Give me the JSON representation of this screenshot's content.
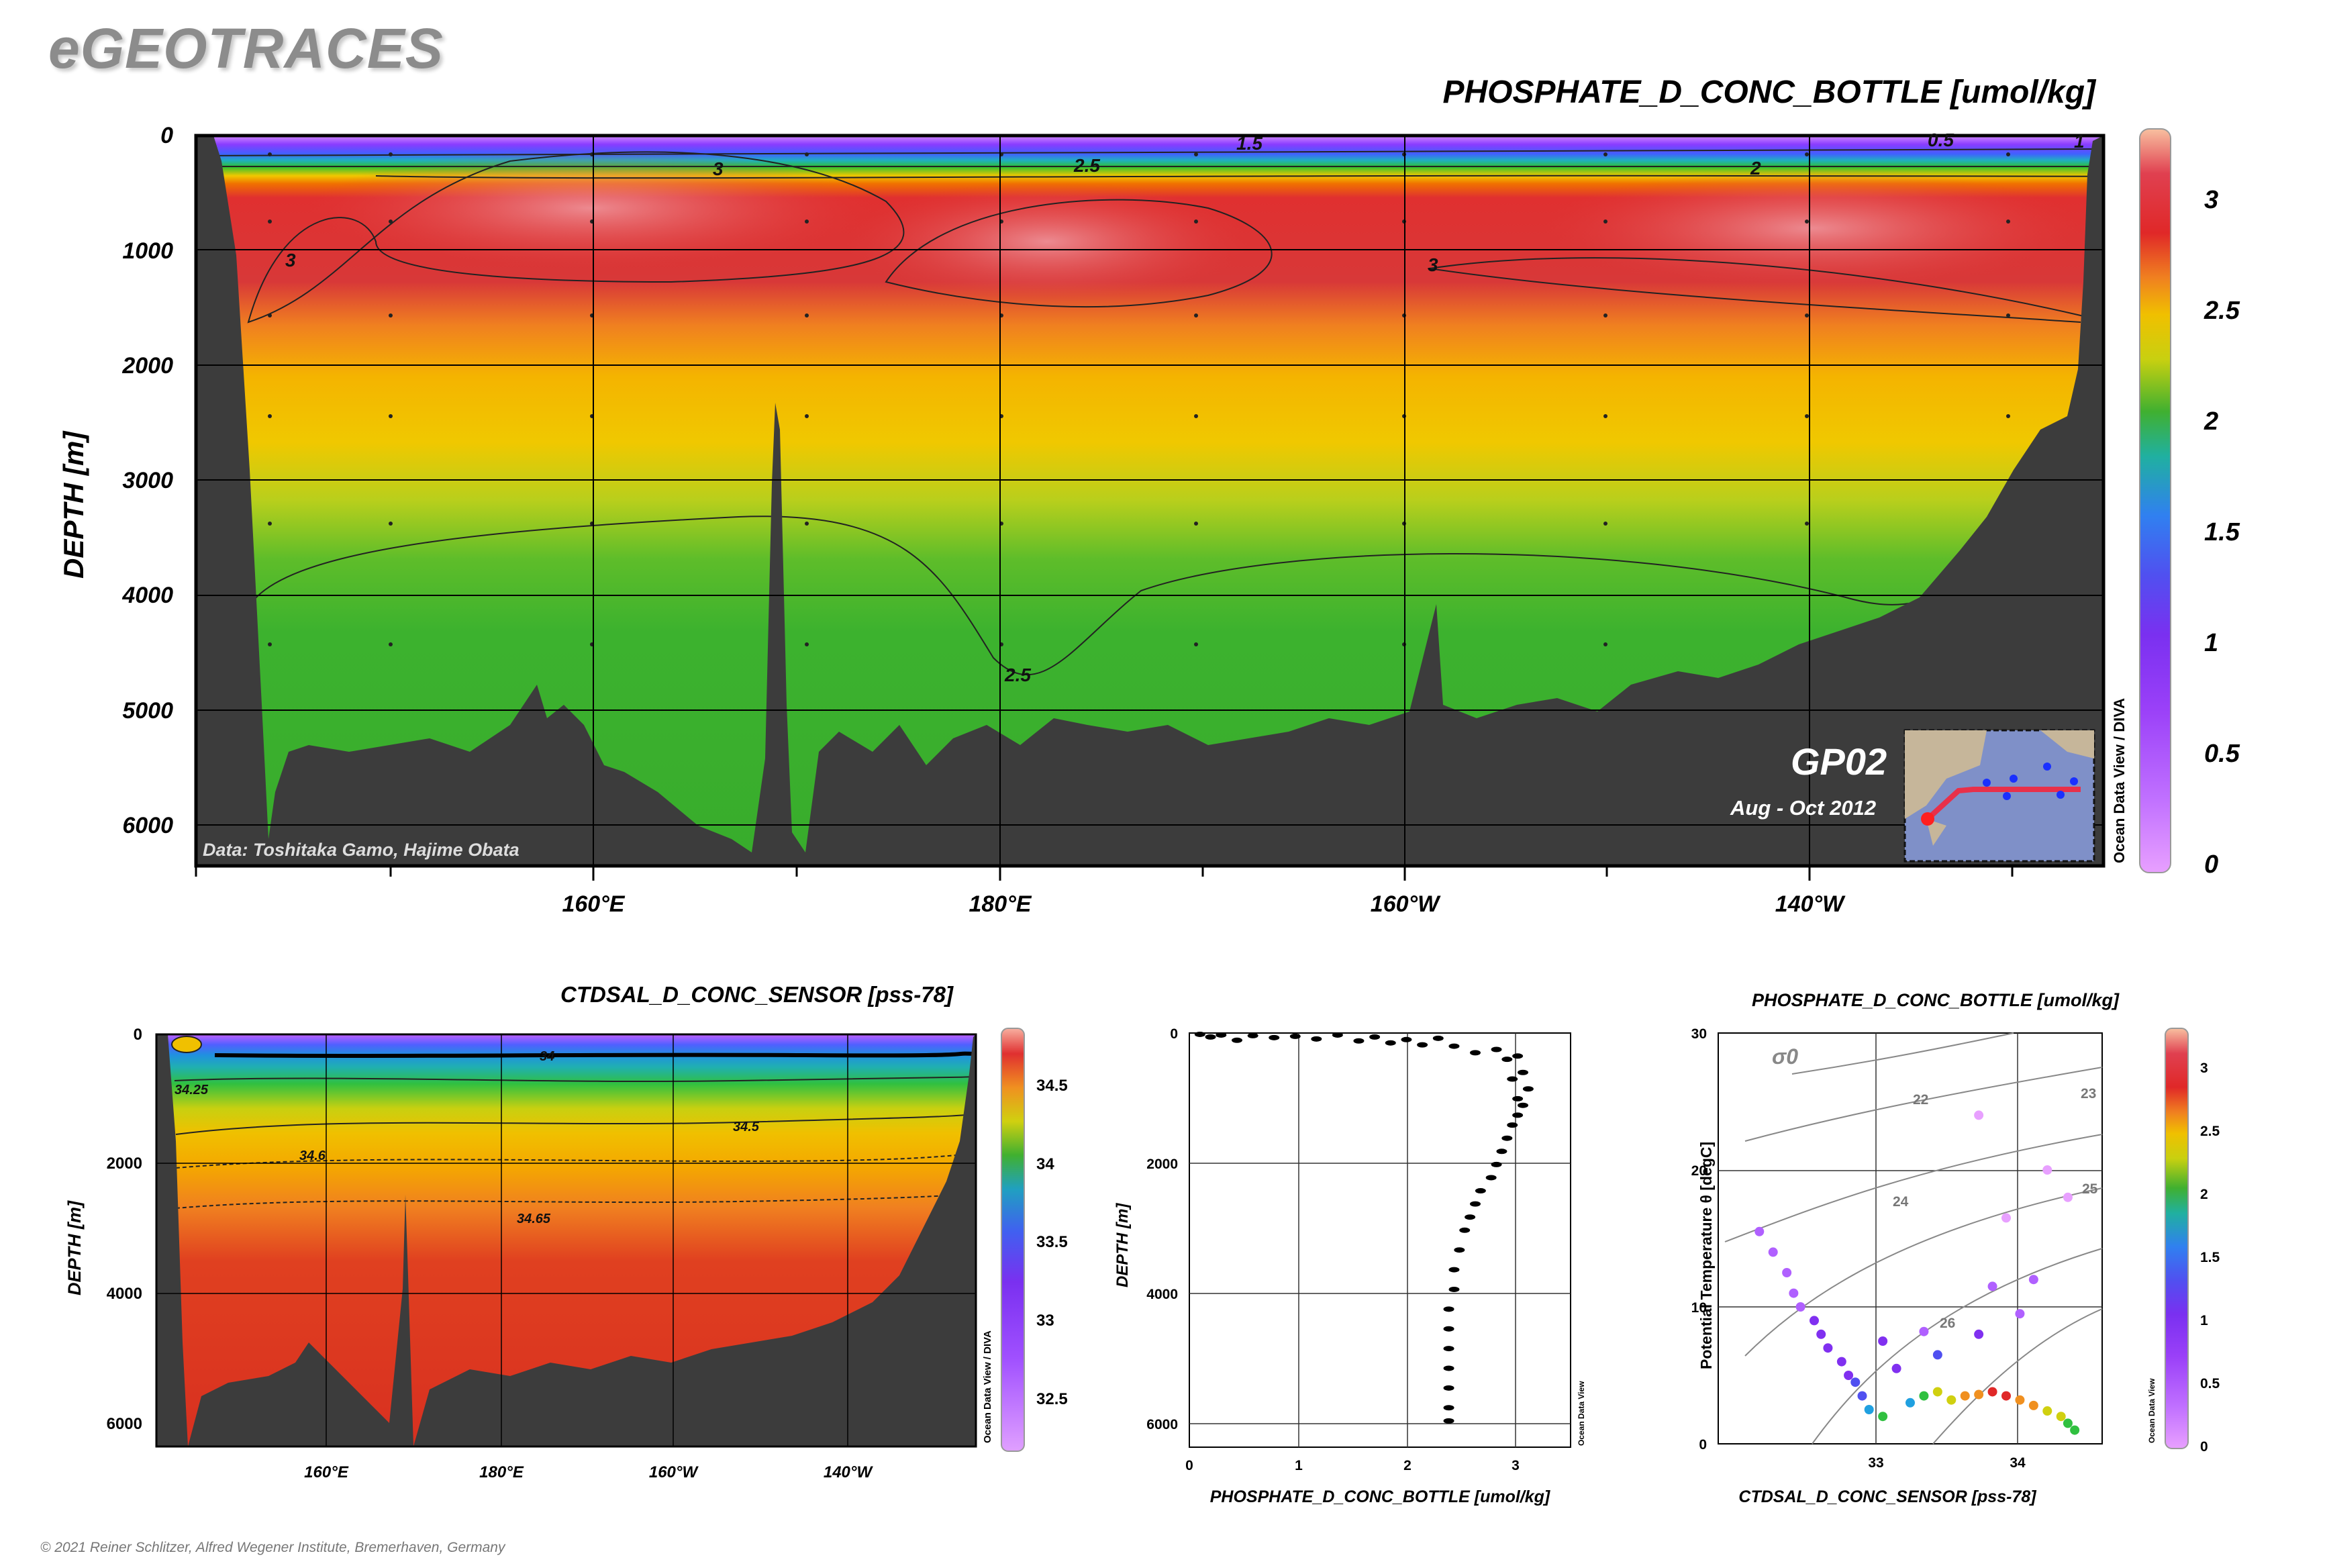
{
  "header": {
    "brand": "eGEOTRACES",
    "copyright": "© 2021 Reiner Schlitzer, Alfred Wegener Institute, Bremerhaven, Germany"
  },
  "colors": {
    "land": "#3c3c3c",
    "grid": "#000000",
    "accent_track": "#e8304a"
  },
  "inset": {
    "cruise": "GP02",
    "dates": "Aug - Oct 2012",
    "data_credit": "Data: Toshitaka Gamo, Hajime Obata"
  },
  "watermarks": {
    "odv_diva": "Ocean Data View / DIVA",
    "odv": "Ocean Data View"
  },
  "chart_data": [
    {
      "id": "main_section",
      "type": "heatmap",
      "title": "PHOSPHATE_D_CONC_BOTTLE [umol/kg]",
      "xlabel": "",
      "ylabel": "DEPTH [m]",
      "x_ticks": [
        "160°E",
        "180°E",
        "160°W",
        "140°W"
      ],
      "y_ticks": [
        "0",
        "1000",
        "2000",
        "3000",
        "4000",
        "5000",
        "6000"
      ],
      "ylim": [
        0,
        6400
      ],
      "contour_labels": [
        "3",
        "2.5",
        "1.5",
        "1",
        "0.5",
        "2",
        "3",
        "3",
        "2.5"
      ],
      "colorbar": {
        "ticks": [
          "3",
          "2.5",
          "2",
          "1.5",
          "1",
          "0.5",
          "0"
        ],
        "range": [
          0,
          3.3
        ]
      },
      "depth_layers_m": [
        0,
        100,
        250,
        500,
        800,
        1200,
        1600,
        2200,
        2700,
        3300,
        4000,
        5000,
        6400
      ],
      "phosphate_profile_umol_kg": [
        0.4,
        1.3,
        2.4,
        3.15,
        3.2,
        3.1,
        2.95,
        2.8,
        2.65,
        2.55,
        2.5,
        2.45,
        2.45
      ]
    },
    {
      "id": "salinity_section",
      "type": "heatmap",
      "title": "CTDSAL_D_CONC_SENSOR [pss-78]",
      "xlabel": "",
      "ylabel": "DEPTH [m]",
      "x_ticks": [
        "160°E",
        "180°E",
        "160°W",
        "140°W"
      ],
      "y_ticks": [
        "0",
        "2000",
        "4000",
        "6000"
      ],
      "ylim": [
        0,
        6400
      ],
      "contour_labels": [
        "34",
        "34.25",
        "34.5",
        "34.6",
        "34.65"
      ],
      "colorbar": {
        "ticks": [
          "34.5",
          "34",
          "33.5",
          "33",
          "32.5"
        ],
        "range": [
          32.2,
          34.8
        ]
      },
      "depth_layers_m": [
        0,
        200,
        500,
        1000,
        1800,
        2600,
        3500,
        6400
      ],
      "salinity_profile_pss78": [
        33.0,
        33.9,
        34.2,
        34.4,
        34.55,
        34.65,
        34.68,
        34.69
      ]
    },
    {
      "id": "phosphate_profile",
      "type": "scatter",
      "title": "",
      "xlabel": "PHOSPHATE_D_CONC_BOTTLE [umol/kg]",
      "ylabel": "DEPTH [m]",
      "x_ticks": [
        "0",
        "1",
        "2",
        "3"
      ],
      "y_ticks": [
        "0",
        "2000",
        "4000",
        "6000"
      ],
      "xlim": [
        0,
        3.6
      ],
      "ylim": [
        0,
        6300
      ],
      "points": [
        [
          0.1,
          20
        ],
        [
          0.2,
          60
        ],
        [
          0.3,
          30
        ],
        [
          0.45,
          110
        ],
        [
          0.6,
          40
        ],
        [
          0.8,
          70
        ],
        [
          1.0,
          50
        ],
        [
          1.2,
          90
        ],
        [
          1.4,
          30
        ],
        [
          1.6,
          120
        ],
        [
          1.75,
          60
        ],
        [
          1.9,
          150
        ],
        [
          2.05,
          100
        ],
        [
          2.2,
          180
        ],
        [
          2.35,
          80
        ],
        [
          2.5,
          200
        ],
        [
          2.7,
          300
        ],
        [
          2.9,
          250
        ],
        [
          3.0,
          400
        ],
        [
          3.1,
          350
        ],
        [
          3.15,
          600
        ],
        [
          3.05,
          700
        ],
        [
          3.2,
          850
        ],
        [
          3.1,
          1000
        ],
        [
          3.15,
          1100
        ],
        [
          3.1,
          1250
        ],
        [
          3.05,
          1400
        ],
        [
          3.0,
          1600
        ],
        [
          2.95,
          1800
        ],
        [
          2.9,
          2000
        ],
        [
          2.85,
          2200
        ],
        [
          2.75,
          2400
        ],
        [
          2.7,
          2600
        ],
        [
          2.65,
          2800
        ],
        [
          2.6,
          3000
        ],
        [
          2.55,
          3300
        ],
        [
          2.5,
          3600
        ],
        [
          2.5,
          3900
        ],
        [
          2.45,
          4200
        ],
        [
          2.45,
          4500
        ],
        [
          2.45,
          4800
        ],
        [
          2.45,
          5100
        ],
        [
          2.45,
          5400
        ],
        [
          2.45,
          5700
        ],
        [
          2.45,
          5900
        ]
      ]
    },
    {
      "id": "ts_diagram",
      "type": "scatter",
      "title": "PHOSPHATE_D_CONC_BOTTLE [umol/kg]",
      "xlabel": "CTDSAL_D_CONC_SENSOR [pss-78]",
      "ylabel": "Potential Temperature θ [degC]",
      "x_ticks": [
        "33",
        "34"
      ],
      "y_ticks": [
        "0",
        "10",
        "20",
        "30"
      ],
      "xlim": [
        32.0,
        34.8
      ],
      "ylim": [
        0,
        30
      ],
      "sigma_label": "σ0",
      "isopycnal_labels": [
        "22",
        "23",
        "24",
        "25",
        "26"
      ],
      "colorbar": {
        "ticks": [
          "3",
          "2.5",
          "2",
          "1.5",
          "1",
          "0.5",
          "0"
        ],
        "range": [
          0,
          3.3
        ]
      },
      "points": [
        [
          32.3,
          15.5,
          0.6
        ],
        [
          32.4,
          14.0,
          0.7
        ],
        [
          32.5,
          12.5,
          0.7
        ],
        [
          32.55,
          11.0,
          0.8
        ],
        [
          32.6,
          10.0,
          0.9
        ],
        [
          32.7,
          9.0,
          1.0
        ],
        [
          32.75,
          8.0,
          1.1
        ],
        [
          32.8,
          7.0,
          1.1
        ],
        [
          32.9,
          6.0,
          1.2
        ],
        [
          32.95,
          5.0,
          1.4
        ],
        [
          33.0,
          4.5,
          1.6
        ],
        [
          33.05,
          3.5,
          1.9
        ],
        [
          33.1,
          2.5,
          2.1
        ],
        [
          33.2,
          2.0,
          2.3
        ],
        [
          33.4,
          3.0,
          2.2
        ],
        [
          33.5,
          3.5,
          2.4
        ],
        [
          33.6,
          3.8,
          2.6
        ],
        [
          33.7,
          3.2,
          2.8
        ],
        [
          33.8,
          3.5,
          3.0
        ],
        [
          33.9,
          3.6,
          3.1
        ],
        [
          34.0,
          3.8,
          3.2
        ],
        [
          34.1,
          3.5,
          3.2
        ],
        [
          34.2,
          3.2,
          3.1
        ],
        [
          34.3,
          2.8,
          3.0
        ],
        [
          34.4,
          2.4,
          2.8
        ],
        [
          34.5,
          2.0,
          2.6
        ],
        [
          34.55,
          1.5,
          2.5
        ],
        [
          34.6,
          1.0,
          2.45
        ],
        [
          33.3,
          5.5,
          1.2
        ],
        [
          33.6,
          6.5,
          1.5
        ],
        [
          33.9,
          8.0,
          1.3
        ],
        [
          34.2,
          9.5,
          0.6
        ],
        [
          34.3,
          12.0,
          0.5
        ],
        [
          34.1,
          16.5,
          0.4
        ],
        [
          34.4,
          20.0,
          0.3
        ],
        [
          33.9,
          24.0,
          0.2
        ],
        [
          34.55,
          18.0,
          0.3
        ],
        [
          33.2,
          7.5,
          1.0
        ],
        [
          33.5,
          8.2,
          0.9
        ],
        [
          34.0,
          11.5,
          0.8
        ]
      ]
    }
  ]
}
